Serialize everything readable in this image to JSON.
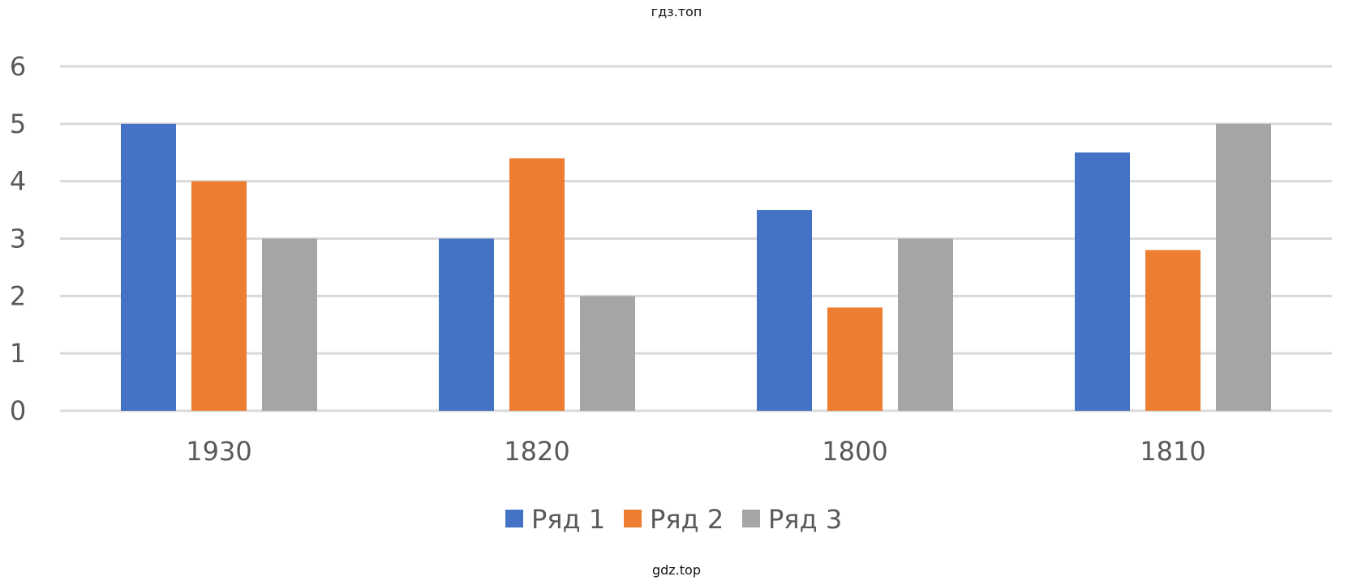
{
  "watermark_top": "гдз.топ",
  "watermark_bottom": "gdz.top",
  "colors": {
    "grid": "#d9d9d9",
    "axis_text": "#595959"
  },
  "chart_data": {
    "type": "bar",
    "title": "",
    "xlabel": "",
    "ylabel": "",
    "categories": [
      "1930",
      "1820",
      "1800",
      "1810"
    ],
    "series": [
      {
        "name": "Ряд 1",
        "color": "#4472c4",
        "values": [
          5,
          3,
          3.5,
          4.5
        ]
      },
      {
        "name": "Ряд 2",
        "color": "#ed7d31",
        "values": [
          4,
          4.4,
          1.8,
          2.8
        ]
      },
      {
        "name": "Ряд 3",
        "color": "#a5a5a5",
        "values": [
          3,
          2,
          3,
          5
        ]
      }
    ],
    "ylim": [
      0,
      6
    ],
    "yticks": [
      "0",
      "1",
      "2",
      "3",
      "4",
      "5",
      "6"
    ],
    "grid": true,
    "legend_position": "bottom"
  }
}
